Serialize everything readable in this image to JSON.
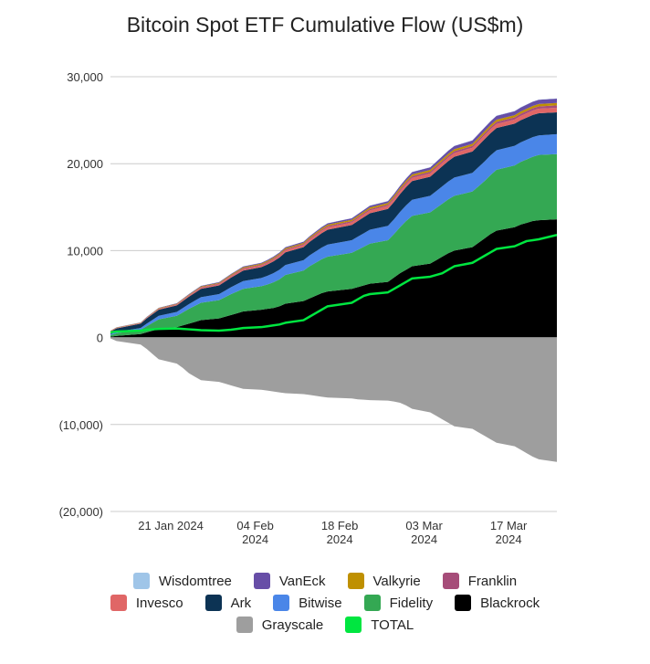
{
  "chart_data": {
    "type": "area",
    "title": "Bitcoin Spot ETF Cumulative Flow (US$m)",
    "y_ticks": [
      "30,000",
      "20,000",
      "10,000",
      "0",
      "(10,000)",
      "(20,000)"
    ],
    "ylim": [
      -20000,
      30000
    ],
    "x_ticks": [
      {
        "date": "2024-01-21",
        "line1": "21 Jan 2024",
        "line2": ""
      },
      {
        "date": "2024-02-04",
        "line1": "04 Feb",
        "line2": "2024"
      },
      {
        "date": "2024-02-18",
        "line1": "18 Feb",
        "line2": "2024"
      },
      {
        "date": "2024-03-03",
        "line1": "03 Mar",
        "line2": "2024"
      },
      {
        "date": "2024-03-17",
        "line1": "17 Mar",
        "line2": "2024"
      }
    ],
    "x": [
      "2024-01-11",
      "2024-01-12",
      "2024-01-16",
      "2024-01-17",
      "2024-01-18",
      "2024-01-19",
      "2024-01-22",
      "2024-01-23",
      "2024-01-24",
      "2024-01-25",
      "2024-01-26",
      "2024-01-29",
      "2024-01-30",
      "2024-01-31",
      "2024-02-01",
      "2024-02-02",
      "2024-02-05",
      "2024-02-06",
      "2024-02-07",
      "2024-02-08",
      "2024-02-09",
      "2024-02-12",
      "2024-02-13",
      "2024-02-14",
      "2024-02-15",
      "2024-02-16",
      "2024-02-20",
      "2024-02-21",
      "2024-02-22",
      "2024-02-23",
      "2024-02-26",
      "2024-02-27",
      "2024-02-28",
      "2024-02-29",
      "2024-03-01",
      "2024-03-04",
      "2024-03-05",
      "2024-03-06",
      "2024-03-07",
      "2024-03-08",
      "2024-03-11",
      "2024-03-12",
      "2024-03-13",
      "2024-03-14",
      "2024-03-15",
      "2024-03-18",
      "2024-03-19",
      "2024-03-20",
      "2024-03-21",
      "2024-03-22",
      "2024-03-25"
    ],
    "series": [
      {
        "name": "Wisdomtree",
        "color": "#9fc5e8",
        "values": [
          0,
          0,
          5,
          5,
          5,
          5,
          5,
          5,
          10,
          10,
          10,
          10,
          10,
          10,
          10,
          15,
          15,
          15,
          15,
          15,
          15,
          20,
          20,
          20,
          20,
          20,
          20,
          20,
          25,
          25,
          25,
          25,
          25,
          25,
          30,
          30,
          30,
          30,
          30,
          30,
          30,
          30,
          30,
          30,
          30,
          30,
          30,
          30,
          30,
          30,
          30
        ]
      },
      {
        "name": "VanEck",
        "color": "#674ea7",
        "values": [
          20,
          25,
          30,
          35,
          40,
          45,
          50,
          55,
          60,
          65,
          70,
          75,
          80,
          85,
          90,
          95,
          100,
          105,
          110,
          115,
          120,
          125,
          130,
          140,
          150,
          160,
          170,
          180,
          190,
          200,
          210,
          220,
          230,
          250,
          270,
          290,
          310,
          330,
          350,
          370,
          390,
          410,
          420,
          430,
          440,
          450,
          460,
          470,
          480,
          490,
          500
        ]
      },
      {
        "name": "Valkyrie",
        "color": "#bf9000",
        "values": [
          30,
          35,
          40,
          45,
          50,
          55,
          60,
          65,
          70,
          75,
          80,
          85,
          90,
          95,
          100,
          105,
          110,
          115,
          120,
          125,
          130,
          135,
          140,
          145,
          150,
          155,
          160,
          165,
          170,
          175,
          180,
          185,
          190,
          195,
          200,
          205,
          210,
          215,
          220,
          225,
          230,
          235,
          240,
          245,
          250,
          255,
          260,
          265,
          270,
          275,
          280
        ]
      },
      {
        "name": "Franklin",
        "color": "#a64d79",
        "values": [
          20,
          25,
          30,
          35,
          40,
          45,
          50,
          55,
          60,
          65,
          70,
          75,
          80,
          85,
          90,
          95,
          100,
          105,
          110,
          115,
          120,
          125,
          130,
          135,
          140,
          145,
          150,
          155,
          160,
          165,
          170,
          175,
          180,
          185,
          190,
          195,
          200,
          205,
          210,
          215,
          220,
          225,
          230,
          235,
          240,
          245,
          250,
          255,
          260,
          265,
          270
        ]
      },
      {
        "name": "Invesco",
        "color": "#e06666",
        "values": [
          30,
          40,
          50,
          60,
          70,
          80,
          90,
          100,
          110,
          120,
          130,
          140,
          150,
          160,
          170,
          180,
          190,
          200,
          210,
          220,
          230,
          240,
          250,
          260,
          270,
          280,
          290,
          300,
          310,
          320,
          330,
          340,
          350,
          360,
          370,
          380,
          390,
          400,
          410,
          420,
          430,
          440,
          450,
          460,
          470,
          480,
          490,
          500,
          510,
          520,
          530
        ]
      },
      {
        "name": "Ark",
        "color": "#0c3354",
        "values": [
          300,
          400,
          500,
          600,
          650,
          700,
          750,
          800,
          850,
          900,
          950,
          1000,
          1050,
          1100,
          1150,
          1200,
          1250,
          1300,
          1350,
          1400,
          1450,
          1500,
          1550,
          1600,
          1650,
          1700,
          1750,
          1800,
          1850,
          1900,
          1950,
          2000,
          2050,
          2100,
          2150,
          2200,
          2250,
          2300,
          2350,
          2400,
          2450,
          2500,
          2550,
          2550,
          2550,
          2550,
          2550,
          2550,
          2550,
          2550,
          2500
        ]
      },
      {
        "name": "Bitwise",
        "color": "#4a86e8",
        "values": [
          100,
          150,
          200,
          300,
          350,
          400,
          450,
          500,
          550,
          600,
          650,
          700,
          750,
          800,
          850,
          900,
          950,
          1000,
          1050,
          1100,
          1150,
          1200,
          1250,
          1300,
          1350,
          1400,
          1450,
          1500,
          1550,
          1600,
          1650,
          1700,
          1750,
          1800,
          1850,
          1900,
          1950,
          2000,
          2050,
          2100,
          2150,
          2200,
          2250,
          2250,
          2250,
          2250,
          2250,
          2250,
          2250,
          2250,
          2300
        ]
      },
      {
        "name": "Fidelity",
        "color": "#34a853",
        "values": [
          200,
          300,
          500,
          700,
          900,
          1100,
          1300,
          1500,
          1700,
          1850,
          2000,
          2100,
          2250,
          2400,
          2500,
          2600,
          2700,
          2800,
          2950,
          3100,
          3300,
          3500,
          3700,
          3800,
          3900,
          4000,
          4150,
          4300,
          4450,
          4600,
          4800,
          5000,
          5300,
          5600,
          5800,
          5900,
          6000,
          6100,
          6200,
          6300,
          6400,
          6500,
          6600,
          6800,
          7000,
          7100,
          7200,
          7300,
          7400,
          7500,
          7500
        ]
      },
      {
        "name": "Blackrock",
        "color": "#000000",
        "values": [
          100,
          200,
          400,
          600,
          800,
          1000,
          1200,
          1400,
          1600,
          1800,
          2000,
          2200,
          2400,
          2600,
          2800,
          3000,
          3200,
          3300,
          3400,
          3600,
          3900,
          4200,
          4500,
          4800,
          5100,
          5300,
          5600,
          5800,
          6000,
          6200,
          6400,
          6900,
          7400,
          7800,
          8200,
          8500,
          8900,
          9300,
          9700,
          10000,
          10400,
          10900,
          11400,
          11900,
          12300,
          12700,
          13000,
          13200,
          13400,
          13500,
          13600
        ]
      },
      {
        "name": "Grayscale",
        "color": "#9e9e9e",
        "values": [
          -100,
          -400,
          -800,
          -1300,
          -1900,
          -2500,
          -3000,
          -3500,
          -4100,
          -4500,
          -4900,
          -5100,
          -5300,
          -5500,
          -5700,
          -5900,
          -6000,
          -6100,
          -6200,
          -6300,
          -6400,
          -6500,
          -6600,
          -6700,
          -6800,
          -6900,
          -7000,
          -7100,
          -7150,
          -7200,
          -7250,
          -7350,
          -7500,
          -7800,
          -8200,
          -8600,
          -9000,
          -9400,
          -9800,
          -10200,
          -10500,
          -10900,
          -11300,
          -11700,
          -12100,
          -12500,
          -12900,
          -13300,
          -13700,
          -14000,
          -14300
        ]
      },
      {
        "name": "TOTAL",
        "color": "#00e640",
        "values": [
          600,
          700,
          800,
          900,
          950,
          1000,
          1050,
          1000,
          950,
          900,
          850,
          800,
          850,
          900,
          1000,
          1100,
          1200,
          1300,
          1400,
          1500,
          1700,
          2000,
          2400,
          2800,
          3200,
          3600,
          4000,
          4400,
          4800,
          5000,
          5200,
          5600,
          6000,
          6400,
          6800,
          7000,
          7200,
          7400,
          7800,
          8200,
          8600,
          9000,
          9400,
          9800,
          10200,
          10500,
          10800,
          11100,
          11200,
          11300,
          11800
        ]
      }
    ],
    "legend": [
      [
        "Wisdomtree",
        "VanEck",
        "Valkyrie",
        "Franklin"
      ],
      [
        "Invesco",
        "Ark",
        "Bitwise",
        "Fidelity",
        "Blackrock"
      ],
      [
        "Grayscale",
        "TOTAL"
      ]
    ],
    "legend_colors": {
      "Wisdomtree": "#9fc5e8",
      "VanEck": "#674ea7",
      "Valkyrie": "#bf9000",
      "Franklin": "#a64d79",
      "Invesco": "#e06666",
      "Ark": "#0c3354",
      "Bitwise": "#4a86e8",
      "Fidelity": "#34a853",
      "Blackrock": "#000000",
      "Grayscale": "#9e9e9e",
      "TOTAL": "#00e640"
    },
    "grid": true,
    "legend_position": "bottom"
  }
}
